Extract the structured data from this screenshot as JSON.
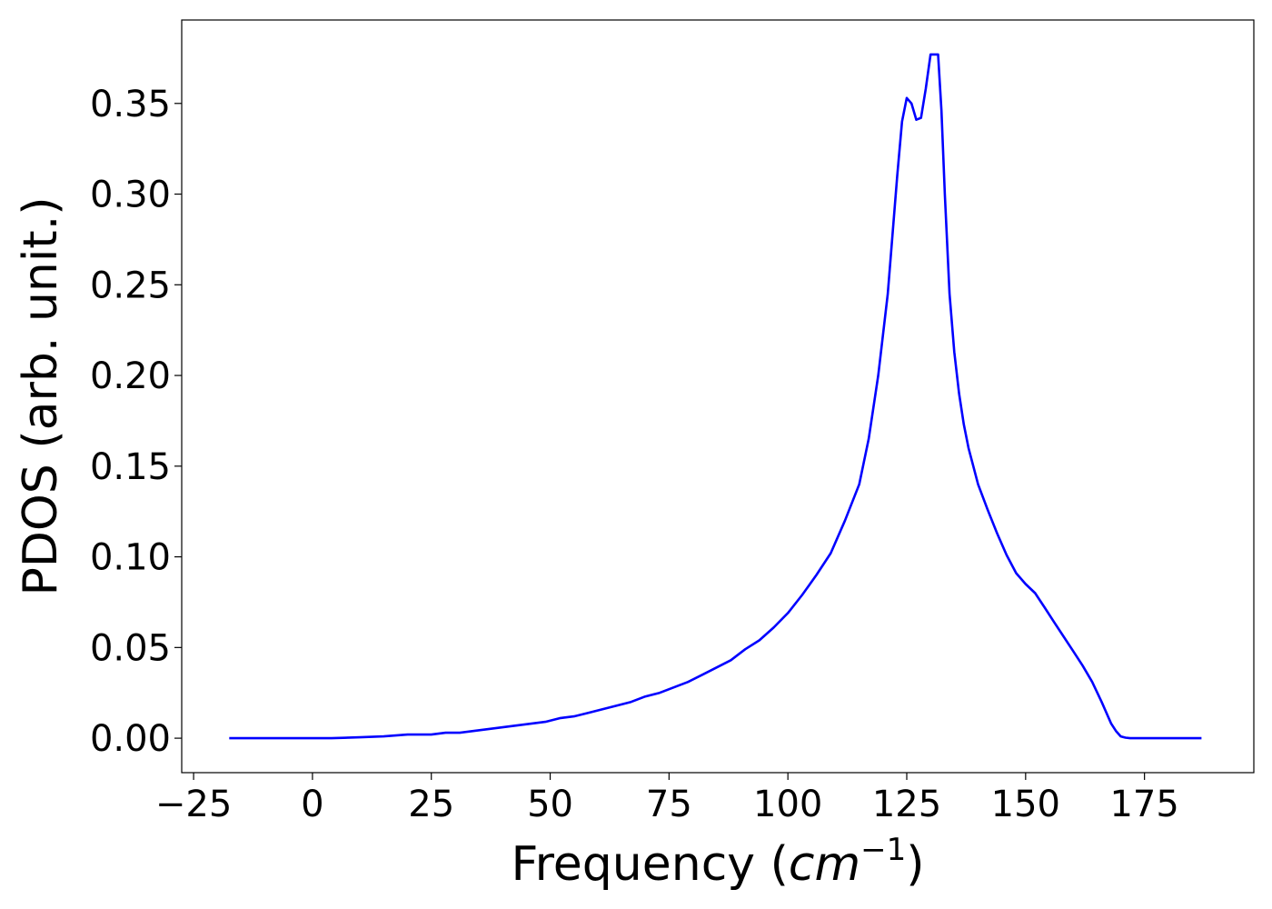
{
  "chart_data": {
    "type": "line",
    "title": "",
    "xlabel": {
      "text": "Frequency (",
      "math_base": "cm",
      "math_exp": "−1",
      "suffix": ")"
    },
    "ylabel": "PDOS (arb. unit.)",
    "xlim": [
      -27.5,
      198
    ],
    "ylim": [
      -0.019,
      0.396
    ],
    "xticks": [
      -25,
      0,
      25,
      50,
      75,
      100,
      125,
      150,
      175
    ],
    "xtick_labels": [
      "−25",
      "0",
      "25",
      "50",
      "75",
      "100",
      "125",
      "150",
      "175"
    ],
    "yticks": [
      0.0,
      0.05,
      0.1,
      0.15,
      0.2,
      0.25,
      0.3,
      0.35
    ],
    "ytick_labels": [
      "0.00",
      "0.05",
      "0.10",
      "0.15",
      "0.20",
      "0.25",
      "0.30",
      "0.35"
    ],
    "grid": false,
    "legend": null,
    "series": [
      {
        "color": "#0000ff",
        "x": [
          -17.5,
          -10,
          0,
          4,
          10,
          15,
          20,
          25,
          28,
          31,
          34,
          37,
          40,
          43,
          46,
          49,
          52,
          55,
          58,
          61,
          64,
          67,
          70,
          73,
          76,
          79,
          82,
          85,
          88,
          91,
          94,
          97,
          100,
          103,
          106,
          109,
          112,
          115,
          117,
          119,
          121,
          123,
          124,
          125,
          126,
          127,
          128,
          129,
          130,
          130.8,
          131.6,
          132.3,
          133,
          134,
          135,
          136,
          137,
          138,
          140,
          142,
          144,
          146,
          148,
          150,
          152,
          154,
          156,
          158,
          160,
          162,
          164,
          166,
          168,
          169,
          170,
          171,
          172,
          173,
          175,
          180,
          187
        ],
        "y": [
          0.0,
          0.0,
          0.0,
          0.0,
          0.0005,
          0.001,
          0.002,
          0.002,
          0.003,
          0.003,
          0.004,
          0.005,
          0.006,
          0.007,
          0.008,
          0.009,
          0.011,
          0.012,
          0.014,
          0.016,
          0.018,
          0.02,
          0.023,
          0.025,
          0.028,
          0.031,
          0.035,
          0.039,
          0.043,
          0.049,
          0.054,
          0.061,
          0.069,
          0.079,
          0.09,
          0.102,
          0.12,
          0.14,
          0.165,
          0.2,
          0.245,
          0.31,
          0.34,
          0.353,
          0.35,
          0.341,
          0.342,
          0.358,
          0.377,
          0.377,
          0.377,
          0.346,
          0.3,
          0.245,
          0.213,
          0.19,
          0.173,
          0.16,
          0.14,
          0.126,
          0.113,
          0.101,
          0.091,
          0.085,
          0.08,
          0.072,
          0.064,
          0.056,
          0.048,
          0.04,
          0.031,
          0.02,
          0.008,
          0.004,
          0.001,
          0.0003,
          0.0,
          0.0,
          0.0,
          0.0,
          0.0
        ]
      }
    ]
  }
}
